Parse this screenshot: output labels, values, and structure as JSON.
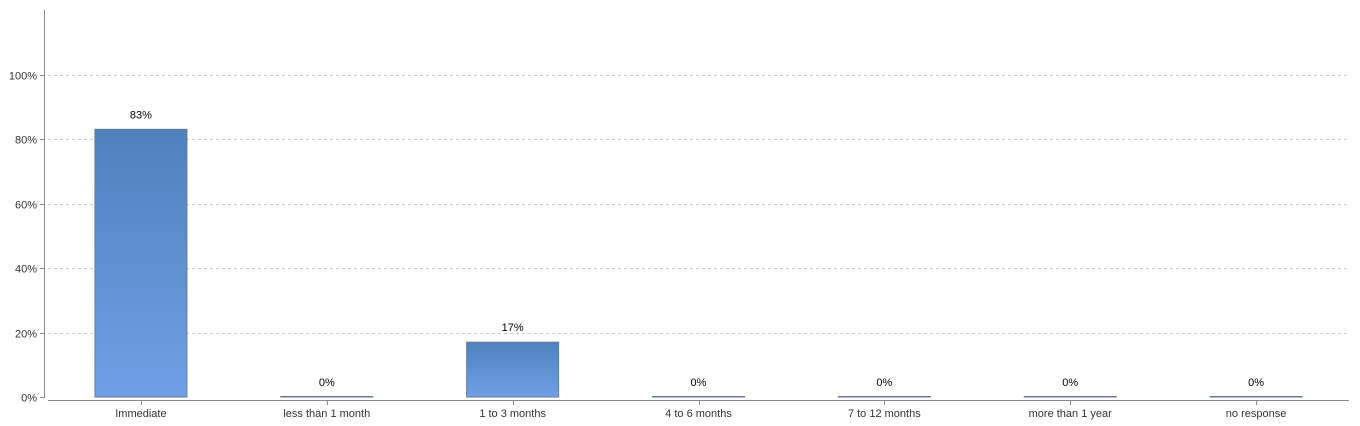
{
  "chart_data": {
    "type": "bar",
    "categories": [
      "Immediate",
      "less than 1 month",
      "1 to 3 months",
      "4 to 6 months",
      "7 to 12 months",
      "more than 1 year",
      "no response"
    ],
    "values": [
      83,
      0,
      17,
      0,
      0,
      0,
      0
    ],
    "data_labels": [
      "83%",
      "0%",
      "17%",
      "0%",
      "0%",
      "0%",
      "0%"
    ],
    "y_ticks": [
      0,
      20,
      40,
      60,
      80,
      100
    ],
    "y_tick_labels": [
      "0%",
      "20%",
      "40%",
      "60%",
      "80%",
      "100%"
    ],
    "ylim": [
      0,
      120
    ],
    "grid": true,
    "legend": "none",
    "colors": {
      "bar_top": "#4f81bd",
      "bar_bottom": "#6fa0e6"
    }
  }
}
